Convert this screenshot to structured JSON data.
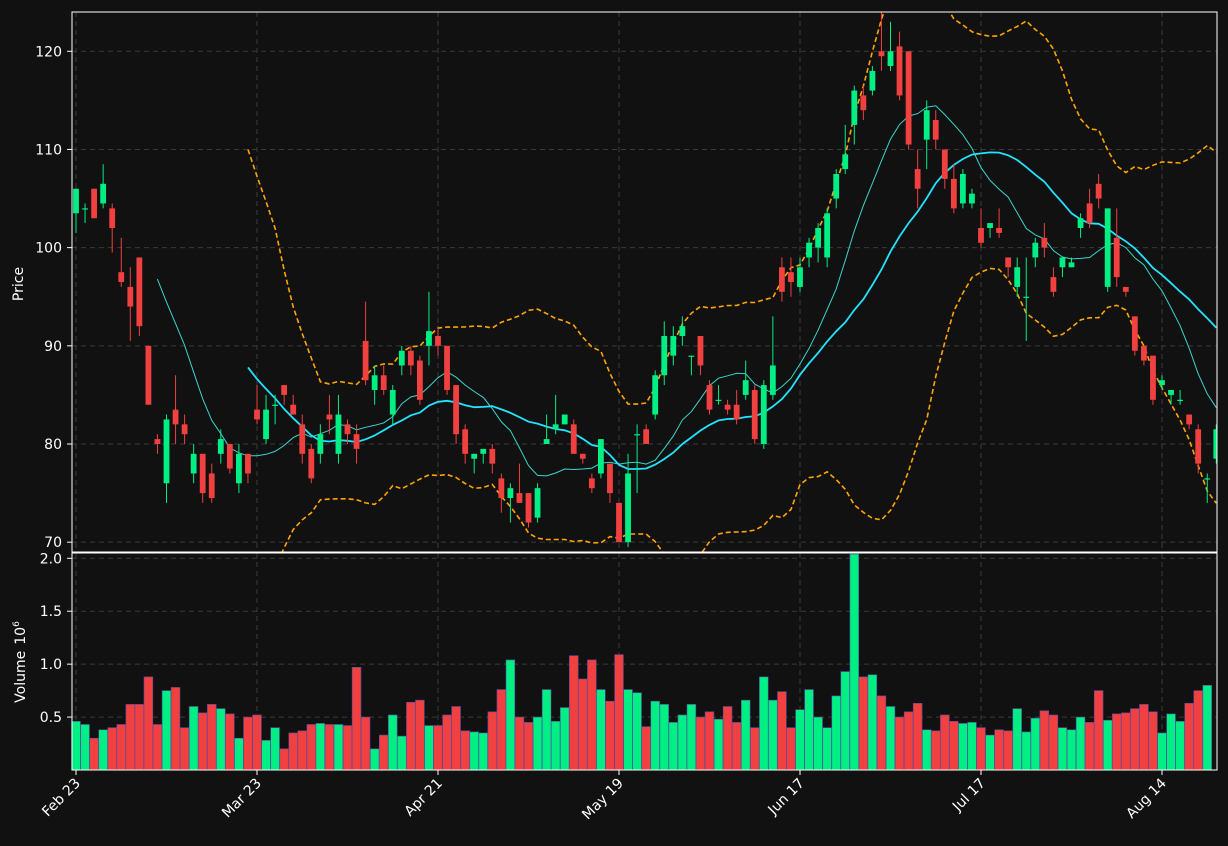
{
  "chart_data": {
    "type": "candlestick",
    "price_panel": {
      "ylabel": "Price",
      "ylim": [
        69,
        124
      ],
      "yticks": [
        70,
        80,
        90,
        100,
        110,
        120
      ],
      "grid": true
    },
    "volume_panel": {
      "ylabel": "Volume",
      "scale_label": "10",
      "scale_exp": "6",
      "ylim": [
        0,
        2.05
      ],
      "yticks": [
        0.5,
        1.0,
        1.5,
        2.0
      ],
      "ytick_labels": [
        "0.5",
        "1.0",
        "1.5",
        "2.0"
      ]
    },
    "x_tick_labels": [
      "Feb 23",
      "Mar 23",
      "Apr 21",
      "May 19",
      "Jun 17",
      "Jul 17",
      "Aug 14"
    ],
    "x_tick_index": [
      0,
      20,
      40,
      60,
      80,
      100,
      120
    ],
    "candles": [
      [
        103.5,
        106,
        101.5,
        106
      ],
      [
        104,
        104.5,
        102.5,
        104
      ],
      [
        106,
        106,
        103,
        103
      ],
      [
        104.5,
        108.5,
        104,
        106.5
      ],
      [
        104,
        104.5,
        99.5,
        102
      ],
      [
        97.5,
        101,
        96,
        96.5
      ],
      [
        96,
        98,
        90.5,
        94
      ],
      [
        99,
        99,
        91,
        92
      ],
      [
        90,
        90,
        84,
        84
      ],
      [
        80.5,
        81,
        79,
        80
      ],
      [
        76,
        83,
        74,
        82.5
      ],
      [
        83.5,
        87,
        80,
        82
      ],
      [
        82,
        83,
        80,
        81
      ],
      [
        77,
        80,
        76,
        79
      ],
      [
        79,
        79,
        74,
        75
      ],
      [
        77,
        78,
        74,
        74.5
      ],
      [
        79,
        81.5,
        78,
        80.5
      ],
      [
        80,
        80,
        77,
        77.5
      ],
      [
        76,
        80,
        75,
        79
      ],
      [
        79,
        79,
        76,
        77
      ],
      [
        83.5,
        86,
        82,
        82.5
      ],
      [
        80.5,
        85,
        80,
        83.5
      ],
      [
        84,
        85,
        82,
        84
      ],
      [
        86,
        86,
        84,
        85
      ],
      [
        84,
        85,
        83,
        83
      ],
      [
        82,
        83,
        78,
        79
      ],
      [
        79.5,
        80,
        76,
        76.5
      ],
      [
        79,
        82,
        78,
        81
      ],
      [
        83,
        85,
        81,
        82.5
      ],
      [
        79,
        85,
        78,
        83
      ],
      [
        82,
        82.5,
        80,
        81
      ],
      [
        81,
        82,
        78,
        79.5
      ],
      [
        90.5,
        94.5,
        86,
        86.5
      ],
      [
        85.5,
        88,
        84,
        87
      ],
      [
        87,
        88,
        85,
        85.5
      ],
      [
        83,
        86,
        82,
        85.5
      ],
      [
        88,
        90,
        87,
        89.5
      ],
      [
        89.5,
        90,
        87,
        88
      ],
      [
        88.5,
        89,
        84,
        84.5
      ],
      [
        90,
        95.5,
        88,
        91.5
      ],
      [
        91,
        92,
        89,
        90
      ],
      [
        90,
        90,
        85,
        85.5
      ],
      [
        86,
        86,
        80,
        81
      ],
      [
        81.5,
        82,
        78,
        79
      ],
      [
        78.5,
        79,
        77,
        79
      ],
      [
        79,
        79.5,
        78,
        79.5
      ],
      [
        79.5,
        80,
        77,
        78
      ],
      [
        76.5,
        77,
        73,
        74.5
      ],
      [
        74.5,
        76,
        72,
        75.5
      ],
      [
        75,
        78,
        74,
        74
      ],
      [
        75,
        75,
        71.5,
        72
      ],
      [
        72.5,
        76,
        72,
        75.5
      ],
      [
        80,
        83,
        80,
        80.5
      ],
      [
        81.5,
        85,
        81,
        82
      ],
      [
        82,
        83,
        82,
        83
      ],
      [
        82,
        82.5,
        79,
        79
      ],
      [
        79,
        79,
        78,
        78.5
      ],
      [
        76.5,
        77,
        75,
        75.5
      ],
      [
        77,
        80.5,
        76.5,
        80.5
      ],
      [
        78,
        78,
        74,
        75
      ],
      [
        74,
        74,
        70,
        70
      ],
      [
        70,
        79,
        69.5,
        77
      ],
      [
        81,
        82,
        75,
        81
      ],
      [
        81.5,
        82,
        80,
        80
      ],
      [
        83,
        87.5,
        82.5,
        87
      ],
      [
        87,
        92.5,
        86,
        91
      ],
      [
        89,
        92,
        88,
        91
      ],
      [
        91,
        93,
        90,
        92
      ],
      [
        89,
        89,
        87,
        89
      ],
      [
        91,
        91,
        87,
        88
      ],
      [
        86,
        86.5,
        83,
        83.5
      ],
      [
        84.5,
        86,
        84,
        84.5
      ],
      [
        84,
        84.5,
        83,
        83.5
      ],
      [
        84,
        85.5,
        82,
        82.5
      ],
      [
        85,
        88.5,
        84.5,
        86.5
      ],
      [
        85.5,
        86,
        80,
        80.5
      ],
      [
        80,
        86.5,
        79.5,
        86
      ],
      [
        85,
        93,
        84.5,
        88
      ],
      [
        98,
        99,
        94.5,
        95.5
      ],
      [
        97.5,
        99,
        95,
        96.5
      ],
      [
        96,
        99,
        95.5,
        98
      ],
      [
        99,
        101,
        98,
        100.5
      ],
      [
        100,
        102.5,
        98.5,
        102
      ],
      [
        99,
        104,
        98,
        103.5
      ],
      [
        105,
        108,
        104,
        107.5
      ],
      [
        108,
        112.5,
        107.5,
        109.5
      ],
      [
        112.5,
        116.5,
        110.5,
        116
      ],
      [
        115.5,
        116.5,
        113,
        114
      ],
      [
        116,
        118.5,
        115.5,
        118
      ],
      [
        120,
        125,
        118,
        119.5
      ],
      [
        118.5,
        123,
        118,
        120
      ],
      [
        120.5,
        122,
        115,
        115.5
      ],
      [
        120,
        120,
        110,
        110.5
      ],
      [
        108,
        110,
        104,
        106
      ],
      [
        111,
        115,
        108,
        114
      ],
      [
        113,
        114,
        110,
        111
      ],
      [
        110,
        110,
        106,
        107
      ],
      [
        107,
        108.5,
        103.5,
        104
      ],
      [
        104.5,
        108,
        104,
        107.5
      ],
      [
        104.5,
        106,
        104,
        105.5
      ],
      [
        102,
        104,
        100,
        100.5
      ],
      [
        102,
        102.5,
        101,
        102.5
      ],
      [
        102,
        104,
        101,
        101.5
      ],
      [
        99,
        99,
        97,
        98
      ],
      [
        96,
        99,
        95,
        98
      ],
      [
        95,
        99,
        90.5,
        95
      ],
      [
        99,
        101,
        98,
        100.5
      ],
      [
        101,
        102.5,
        99,
        100
      ],
      [
        97,
        98,
        95,
        95.5
      ],
      [
        98,
        99,
        97,
        99
      ],
      [
        98,
        99,
        98,
        98.5
      ],
      [
        102,
        103.5,
        101,
        103
      ],
      [
        104.5,
        106,
        102,
        102.5
      ],
      [
        106.5,
        107.5,
        104,
        105
      ],
      [
        96,
        104,
        95.5,
        104
      ],
      [
        101,
        104,
        96,
        97
      ],
      [
        96,
        96,
        95,
        95.5
      ],
      [
        93,
        93,
        89,
        89.5
      ],
      [
        90,
        90,
        88,
        88.5
      ],
      [
        89,
        89,
        84,
        84.5
      ],
      [
        86,
        87,
        85.5,
        86.5
      ],
      [
        85,
        85.5,
        84,
        85.5
      ],
      [
        84.5,
        85.5,
        84,
        84.5
      ],
      [
        83,
        83,
        81.5,
        82
      ],
      [
        81.5,
        82,
        77,
        78
      ],
      [
        76.5,
        77,
        74,
        76.5
      ],
      [
        78.5,
        82,
        78,
        81.5
      ]
    ],
    "volume": [
      0.46,
      0.43,
      0.3,
      0.38,
      0.4,
      0.43,
      0.62,
      0.62,
      0.88,
      0.43,
      0.75,
      0.78,
      0.4,
      0.6,
      0.54,
      0.62,
      0.58,
      0.53,
      0.3,
      0.5,
      0.52,
      0.28,
      0.4,
      0.2,
      0.35,
      0.37,
      0.43,
      0.44,
      0.43,
      0.43,
      0.42,
      0.97,
      0.5,
      0.2,
      0.33,
      0.52,
      0.32,
      0.64,
      0.66,
      0.42,
      0.42,
      0.52,
      0.6,
      0.37,
      0.36,
      0.35,
      0.55,
      0.76,
      1.04,
      0.5,
      0.45,
      0.5,
      0.76,
      0.46,
      0.59,
      1.08,
      0.86,
      1.04,
      0.76,
      0.65,
      1.09,
      0.76,
      0.73,
      0.41,
      0.65,
      0.62,
      0.45,
      0.52,
      0.62,
      0.5,
      0.55,
      0.48,
      0.6,
      0.45,
      0.66,
      0.4,
      0.88,
      0.66,
      0.74,
      0.4,
      0.57,
      0.76,
      0.5,
      0.4,
      0.7,
      0.93,
      2.04,
      0.88,
      0.9,
      0.7,
      0.6,
      0.5,
      0.55,
      0.63,
      0.38,
      0.37,
      0.52,
      0.46,
      0.44,
      0.45,
      0.4,
      0.33,
      0.38,
      0.37,
      0.58,
      0.36,
      0.49,
      0.56,
      0.52,
      0.4,
      0.38,
      0.5,
      0.45,
      0.75,
      0.47,
      0.53,
      0.54,
      0.58,
      0.62,
      0.55,
      0.35,
      0.53,
      0.46,
      0.63,
      0.75,
      0.8
    ],
    "colors": {
      "up": "#00ef85",
      "down": "#f04040",
      "bollinger": "#ffa500",
      "ma_fast": "#3ad6cc",
      "ma_slow": "#22e4ff",
      "background": "#111111",
      "grid": "#3a3a3a",
      "text": "#ffffff"
    }
  }
}
